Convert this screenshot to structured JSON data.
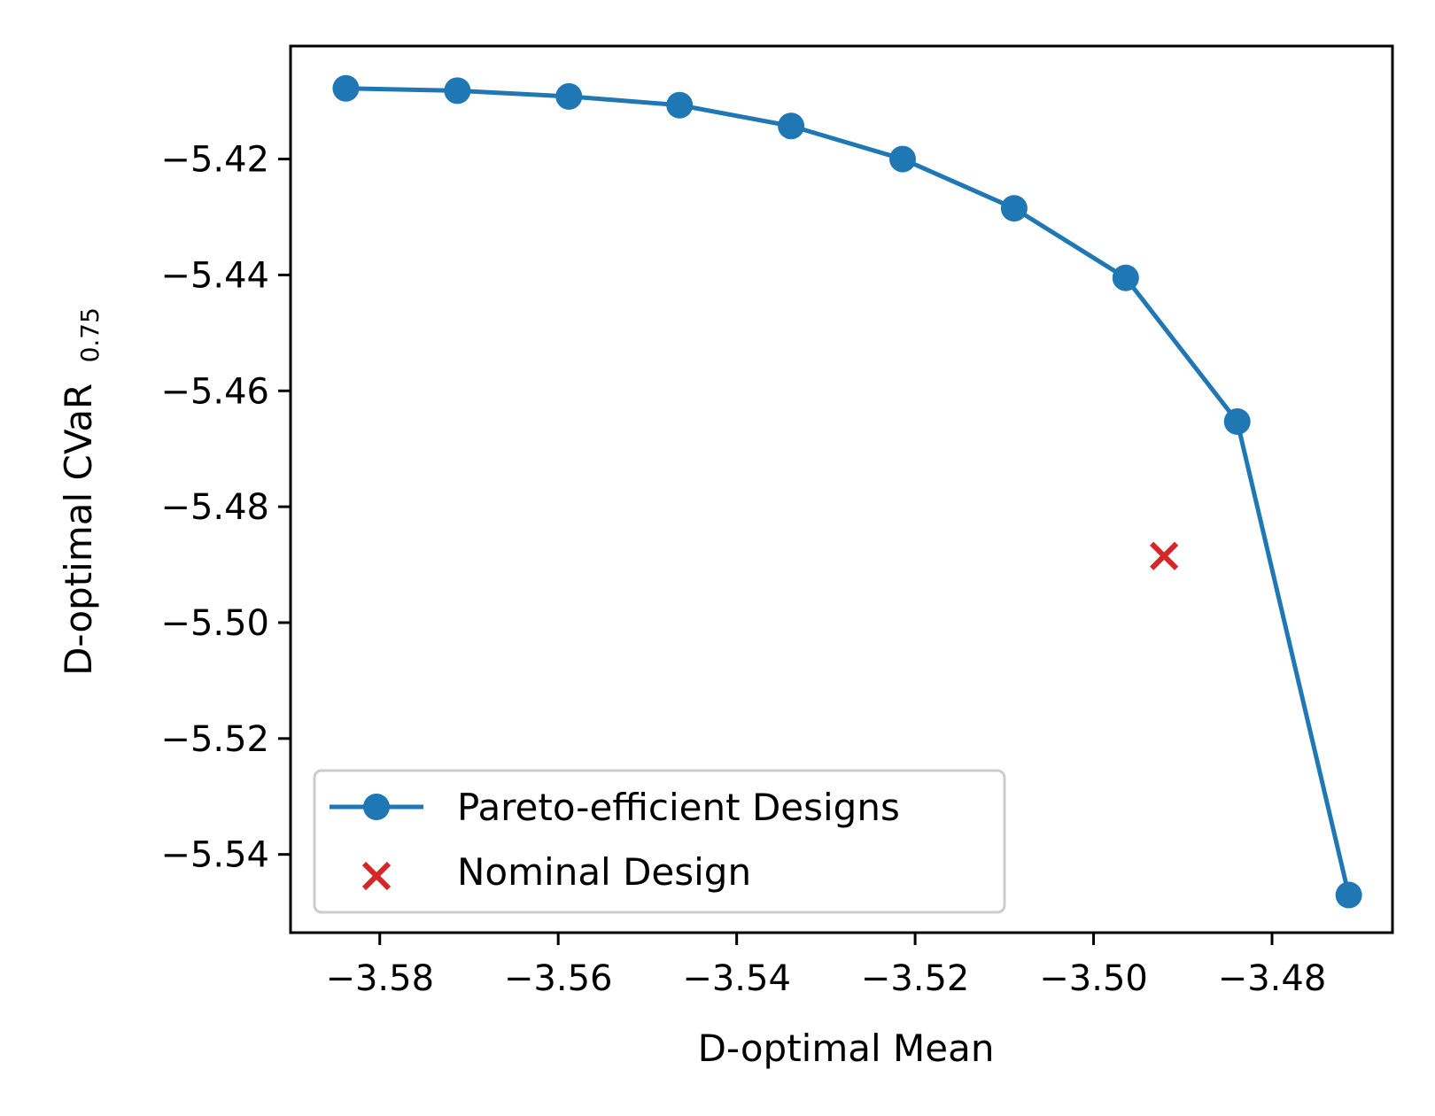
{
  "chart_data": {
    "type": "line",
    "xlabel": "D-optimal Mean",
    "ylabel_main": "D-optimal CVaR",
    "ylabel_sub": "0.75",
    "xlim": [
      -3.59,
      -3.4665
    ],
    "ylim": [
      -5.5535,
      -5.4005
    ],
    "x_ticks": [
      -3.58,
      -3.56,
      -3.54,
      -3.52,
      -3.5,
      -3.48
    ],
    "x_tick_labels": [
      "−3.58",
      "−3.56",
      "−3.54",
      "−3.52",
      "−3.50",
      "−3.48"
    ],
    "y_ticks": [
      -5.42,
      -5.44,
      -5.46,
      -5.48,
      -5.5,
      -5.52,
      -5.54
    ],
    "y_tick_labels": [
      "−5.42",
      "−5.44",
      "−5.46",
      "−5.48",
      "−5.50",
      "−5.52",
      "−5.54"
    ],
    "grid": false,
    "legend_position": "lower-left",
    "series": [
      {
        "name": "Pareto-efficient Designs",
        "type": "line",
        "marker": "circle",
        "color": "#1f77b4",
        "x": [
          -3.5838,
          -3.5713,
          -3.5588,
          -3.5464,
          -3.5339,
          -3.5214,
          -3.5089,
          -3.4964,
          -3.4839,
          -3.4714
        ],
        "y": [
          -5.4078,
          -5.4082,
          -5.4092,
          -5.4107,
          -5.4143,
          -5.42,
          -5.4285,
          -5.4405,
          -5.4653,
          -5.547
        ]
      },
      {
        "name": "Nominal Design",
        "type": "scatter",
        "marker": "x",
        "color": "#d62728",
        "x": [
          -3.4921
        ],
        "y": [
          -5.4885
        ]
      }
    ]
  }
}
